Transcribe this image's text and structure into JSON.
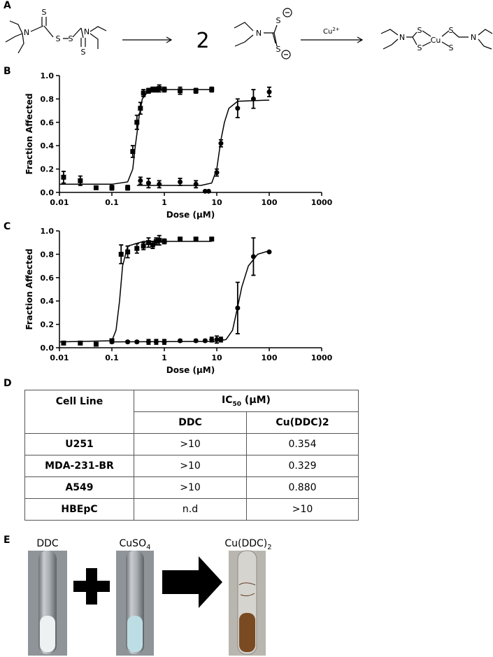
{
  "panel_labels": [
    "A",
    "B",
    "C",
    "D",
    "E"
  ],
  "scheme": {
    "atoms": [
      "S",
      "N",
      "S",
      "S",
      "N",
      "S",
      "N",
      "S",
      "S",
      "N",
      "S",
      "Cu",
      "S",
      "S",
      "S",
      "N"
    ],
    "coefficient": "2",
    "reagent": "Cu",
    "reagent_charge": "2+"
  },
  "chart_data": [
    {
      "type": "scatter",
      "xlabel": "Dose (μM)",
      "ylabel": "Fraction Affected",
      "xscale": "log",
      "xlim": [
        0.01,
        1000
      ],
      "xticks": [
        0.01,
        0.1,
        1,
        10,
        100,
        1000
      ],
      "ylim": [
        0,
        1
      ],
      "yticks": [
        {
          "value": 0,
          "label": "0.0"
        },
        0.2,
        0.4,
        0.6,
        0.8,
        {
          "value": 1,
          "label": "1.0"
        }
      ],
      "series": [
        {
          "marker": "square",
          "color": "#000000",
          "x": [
            0.012,
            0.025,
            0.05,
            0.1,
            0.2,
            0.25,
            0.3,
            0.35,
            0.4,
            0.5,
            0.6,
            0.7,
            0.8,
            1,
            2,
            4,
            8
          ],
          "values": [
            0.13,
            0.1,
            0.04,
            0.04,
            0.04,
            0.35,
            0.6,
            0.72,
            0.85,
            0.87,
            0.88,
            0.88,
            0.89,
            0.88,
            0.87,
            0.87,
            0.88
          ],
          "errors": [
            0.05,
            0.04,
            0.01,
            0.02,
            0.02,
            0.05,
            0.06,
            0.05,
            0.03,
            0.02,
            0.02,
            0.02,
            0.03,
            0.02,
            0.03,
            0.02,
            0.02
          ],
          "fit": {
            "x": [
              0.01,
              0.1,
              0.2,
              0.25,
              0.28,
              0.3,
              0.33,
              0.38,
              0.5,
              1,
              8
            ],
            "values": [
              0.07,
              0.07,
              0.09,
              0.2,
              0.4,
              0.5,
              0.65,
              0.8,
              0.87,
              0.88,
              0.88
            ]
          }
        },
        {
          "marker": "circle",
          "color": "#000000",
          "x": [
            0.35,
            0.5,
            0.8,
            2,
            4,
            6,
            7,
            10,
            12,
            25,
            50,
            100
          ],
          "values": [
            0.1,
            0.08,
            0.07,
            0.09,
            0.07,
            0.01,
            0.01,
            0.17,
            0.42,
            0.72,
            0.8,
            0.86
          ],
          "errors": [
            0.03,
            0.04,
            0.03,
            0.03,
            0.03,
            0.0,
            0.0,
            0.03,
            0.03,
            0.08,
            0.08,
            0.04
          ],
          "fit": {
            "x": [
              0.3,
              5,
              8,
              10,
              12,
              14,
              17,
              25,
              100
            ],
            "values": [
              0.06,
              0.06,
              0.08,
              0.2,
              0.45,
              0.6,
              0.72,
              0.78,
              0.79
            ]
          }
        }
      ]
    },
    {
      "type": "scatter",
      "xlabel": "Dose (μM)",
      "ylabel": "Fraction Affected",
      "xscale": "log",
      "xlim": [
        0.01,
        1000
      ],
      "xticks": [
        0.01,
        0.1,
        1,
        10,
        100,
        1000
      ],
      "ylim": [
        0,
        1
      ],
      "yticks": [
        {
          "value": 0,
          "label": "0.0"
        },
        0.2,
        0.4,
        0.6,
        0.8,
        {
          "value": 1,
          "label": "1.0"
        }
      ],
      "series": [
        {
          "marker": "square",
          "color": "#000000",
          "x": [
            0.012,
            0.025,
            0.05,
            0.1,
            0.15,
            0.2,
            0.3,
            0.4,
            0.5,
            0.6,
            0.7,
            0.8,
            1,
            2,
            4,
            8
          ],
          "values": [
            0.04,
            0.04,
            0.03,
            0.06,
            0.8,
            0.82,
            0.85,
            0.87,
            0.9,
            0.88,
            0.91,
            0.92,
            0.91,
            0.93,
            0.93,
            0.93
          ],
          "errors": [
            0.01,
            0.01,
            0.01,
            0.01,
            0.08,
            0.05,
            0.04,
            0.03,
            0.04,
            0.03,
            0.03,
            0.04,
            0.02,
            0.01,
            0.01,
            0.01
          ],
          "fit": {
            "x": [
              0.01,
              0.1,
              0.12,
              0.14,
              0.16,
              0.2,
              0.4,
              8
            ],
            "values": [
              0.05,
              0.06,
              0.15,
              0.4,
              0.7,
              0.87,
              0.91,
              0.91
            ]
          }
        },
        {
          "marker": "circle",
          "color": "#000000",
          "x": [
            0.1,
            0.2,
            0.3,
            0.5,
            0.7,
            1,
            2,
            4,
            6,
            8,
            10,
            12,
            25,
            50,
            100
          ],
          "values": [
            0.05,
            0.05,
            0.05,
            0.05,
            0.05,
            0.05,
            0.06,
            0.06,
            0.06,
            0.07,
            0.07,
            0.07,
            0.34,
            0.78,
            0.82
          ],
          "errors": [
            0.01,
            0.01,
            0.01,
            0.02,
            0.02,
            0.02,
            0.01,
            0.01,
            0.01,
            0.02,
            0.03,
            0.02,
            0.22,
            0.16,
            0.0
          ],
          "fit": {
            "x": [
              0.1,
              10,
              15,
              20,
              25,
              30,
              40,
              60,
              100
            ],
            "values": [
              0.05,
              0.055,
              0.07,
              0.15,
              0.35,
              0.52,
              0.7,
              0.8,
              0.83
            ]
          }
        }
      ]
    }
  ],
  "table": {
    "header": {
      "cell_line": "Cell Line",
      "ic": "IC",
      "ic_sub": "50",
      "ic_unit": " (μM)",
      "columns": [
        "DDC",
        "Cu(DDC)2"
      ]
    },
    "rows": [
      [
        "U251",
        ">10",
        "0.354"
      ],
      [
        "MDA-231-BR",
        ">10",
        "0.329"
      ],
      [
        "A549",
        ">10",
        "0.880"
      ],
      [
        "HBEpC",
        "n.d",
        ">10"
      ]
    ]
  },
  "photos": [
    {
      "label": "DDC"
    },
    {
      "label": "CuSO",
      "sub": "4"
    },
    {
      "label": "Cu(DDC)",
      "sub": "2"
    }
  ]
}
